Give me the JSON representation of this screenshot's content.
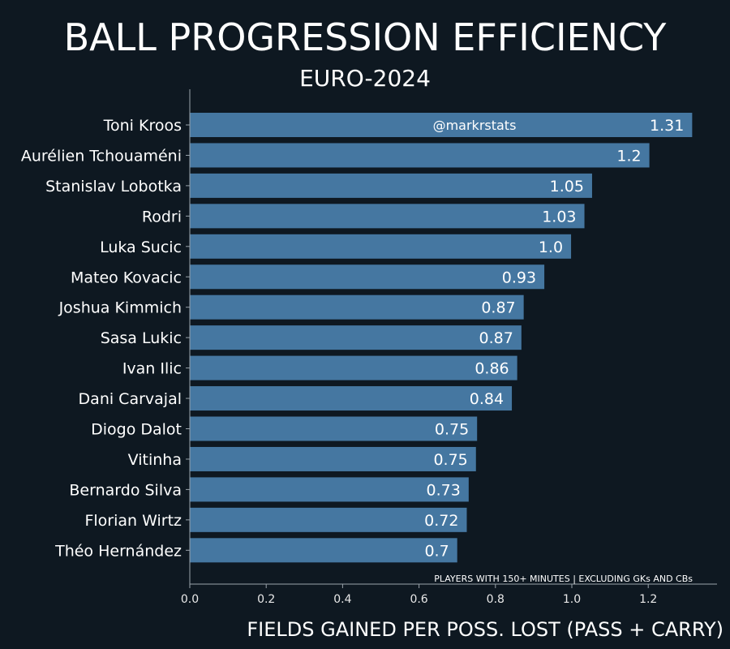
{
  "chart_data": {
    "type": "bar",
    "orientation": "horizontal",
    "title": "BALL PROGRESSION EFFICIENCY",
    "subtitle": "EURO-2024",
    "xlabel": "FIELDS GAINED PER POSS. LOST (PASS + CARRY)",
    "ylabel": "",
    "xlim": [
      0,
      1.38
    ],
    "x_ticks": [
      "0.0",
      "0.2",
      "0.4",
      "0.6",
      "0.8",
      "1.0",
      "1.2"
    ],
    "categories": [
      "Toni Kroos",
      "Aurélien Tchouaméni",
      "Stanislav Lobotka",
      "Rodri",
      "Luka Sucic",
      "Mateo Kovacic",
      "Joshua Kimmich",
      "Sasa Lukic",
      "Ivan Ilic",
      "Dani Carvajal",
      "Diogo Dalot",
      "Vitinha",
      "Bernardo Silva",
      "Florian Wirtz",
      "Théo Hernández"
    ],
    "values": [
      1.315,
      1.203,
      1.053,
      1.033,
      0.998,
      0.928,
      0.874,
      0.868,
      0.857,
      0.843,
      0.752,
      0.749,
      0.73,
      0.725,
      0.7
    ],
    "value_labels": [
      "1.31",
      "1.2",
      "1.05",
      "1.03",
      "1.0",
      "0.93",
      "0.87",
      "0.87",
      "0.86",
      "0.84",
      "0.75",
      "0.75",
      "0.73",
      "0.72",
      "0.7"
    ],
    "watermark": "@markrstats",
    "footnote": "PLAYERS WITH 150+ MINUTES | EXCLUDING GKs AND CBs",
    "bar_color": "#4577a1",
    "background_color": "#0e1821",
    "grid": false
  }
}
